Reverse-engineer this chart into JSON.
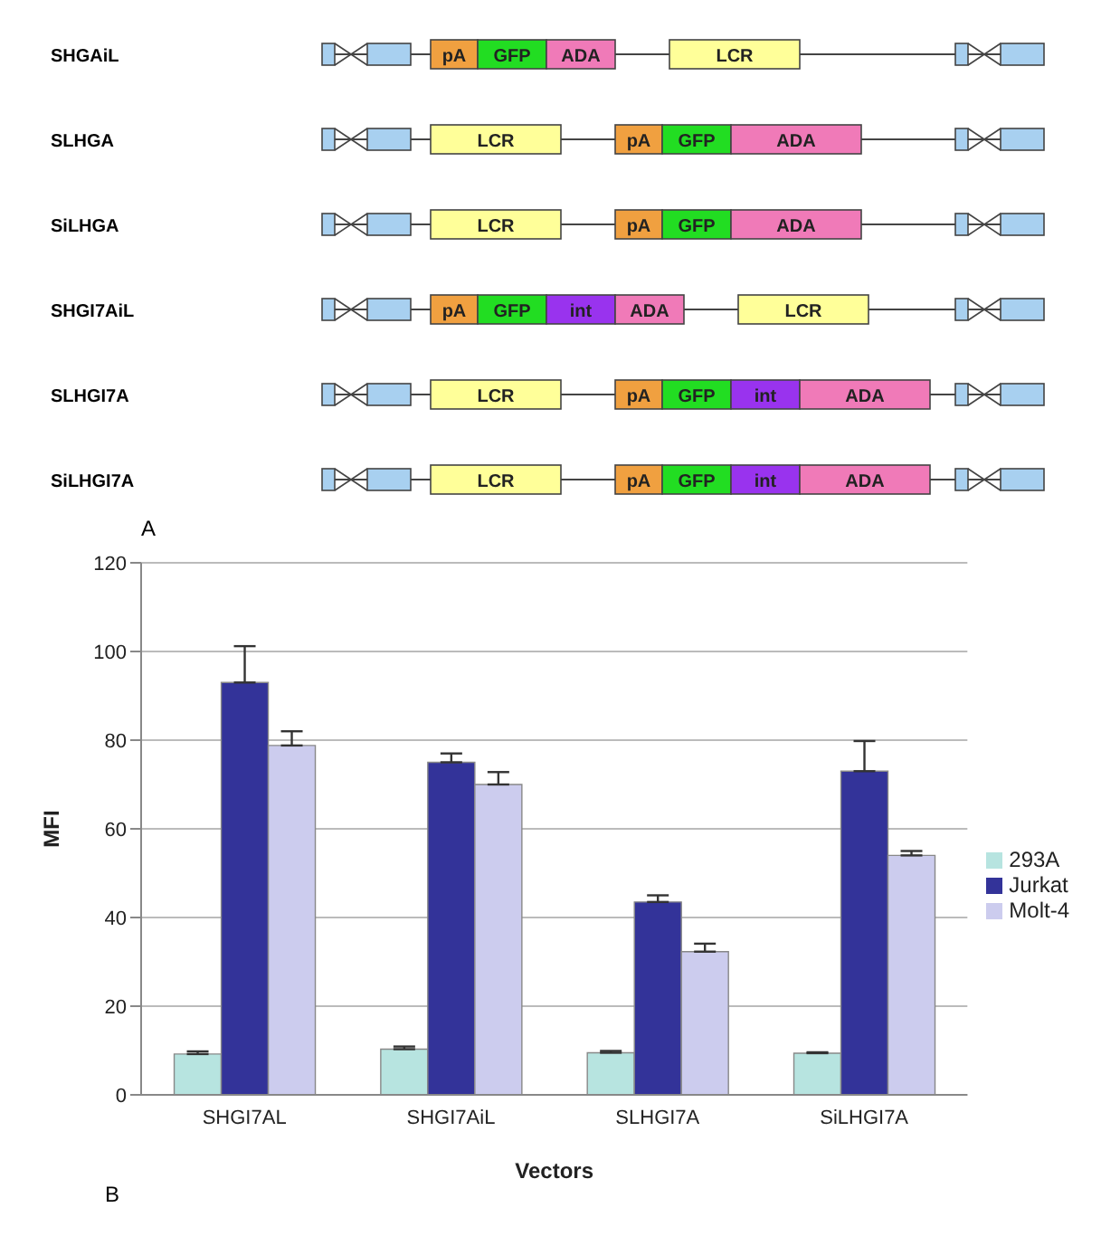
{
  "chart_data": [
    {
      "type": "other",
      "annotations": [
        "A"
      ],
      "categories": [
        "SHGAiL",
        "SLHGA",
        "SiLHGA",
        "SHGI7AiL",
        "SLHGI7A",
        "SiLHGI7A"
      ],
      "cell_labels": [
        [
          "pA",
          "GFP",
          "ADA",
          null,
          "LCR"
        ],
        [
          "LCR",
          null,
          "pA",
          "GFP",
          "ADA"
        ],
        [
          "LCR",
          null,
          "pA",
          "GFP",
          "ADA"
        ],
        [
          "pA",
          "GFP",
          "int",
          "ADA",
          null,
          "LCR"
        ],
        [
          "LCR",
          null,
          "pA",
          "GFP",
          "int",
          "ADA"
        ],
        [
          "LCR",
          null,
          "pA",
          "GFP",
          "int",
          "ADA"
        ]
      ],
      "colors": [
        [
          "#f0a040",
          "#22dd22",
          "#f07ab8",
          null,
          "#ffff99"
        ],
        [
          "#ffff99",
          null,
          "#f0a040",
          "#22dd22",
          "#f07ab8"
        ],
        [
          "#ffff99",
          null,
          "#f0a040",
          "#22dd22",
          "#f07ab8"
        ],
        [
          "#f0a040",
          "#22dd22",
          "#9933ee",
          "#f07ab8",
          null,
          "#ffff99"
        ],
        [
          "#ffff99",
          null,
          "#f0a040",
          "#22dd22",
          "#9933ee",
          "#f07ab8"
        ],
        [
          "#ffff99",
          null,
          "#f0a040",
          "#22dd22",
          "#9933ee",
          "#f07ab8"
        ]
      ]
    },
    {
      "type": "bar",
      "annotations": [
        "B"
      ],
      "xlabel": "Vectors",
      "ylabel": "MFI",
      "categories": [
        "SHGI7AL",
        "SHGI7AiL",
        "SLHGI7A",
        "SiLHGI7A"
      ],
      "ylim": [
        0,
        120
      ],
      "yticks": [
        0,
        20,
        40,
        60,
        80,
        100,
        120
      ],
      "grid": "y",
      "legend": "right",
      "series": [
        {
          "name": "293A",
          "color": "#b7e4e0",
          "values": [
            9.2,
            10.3,
            9.5,
            9.4
          ],
          "errors": [
            [
              9.2,
              9.8
            ],
            [
              10.3,
              10.9
            ],
            [
              9.5,
              9.9
            ],
            [
              9.4,
              9.6
            ]
          ]
        },
        {
          "name": "Jurkat",
          "color": "#333399",
          "values": [
            93,
            75,
            43.5,
            73
          ],
          "errors": [
            [
              93,
              101.2
            ],
            [
              75,
              77
            ],
            [
              43.5,
              45
            ],
            [
              73,
              79.8
            ]
          ]
        },
        {
          "name": "Molt-4",
          "color": "#ccccee",
          "values": [
            78.8,
            70,
            32.3,
            54
          ],
          "errors": [
            [
              78.8,
              82
            ],
            [
              70,
              72.8
            ],
            [
              32.3,
              34.1
            ],
            [
              54,
              55
            ]
          ]
        }
      ]
    }
  ]
}
